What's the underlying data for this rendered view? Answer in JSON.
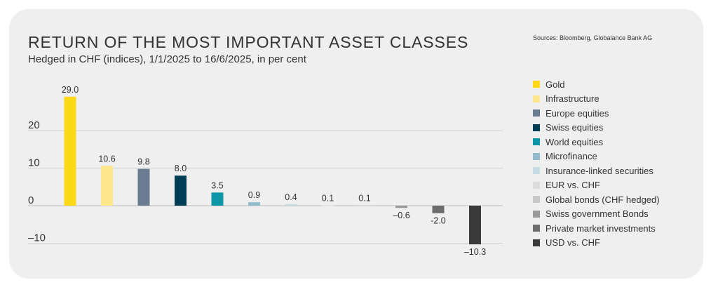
{
  "source": "Sources: Bloomberg, Globalance Bank AG",
  "chart_data": {
    "type": "bar",
    "title": "RETURN OF THE MOST IMPORTANT ASSET CLASSES",
    "subtitle": "Hedged in CHF (indices), 1/1/2025 to 16/6/2025, in per cent",
    "xlabel": "",
    "ylabel": "",
    "ylim": [
      -10.3,
      29.0
    ],
    "yticks": [
      20,
      10,
      0,
      -10
    ],
    "ytick_labels": [
      "20",
      "10",
      "0",
      "–10"
    ],
    "grid": true,
    "legend_position": "right",
    "categories": [
      "Gold",
      "Infrastructure",
      "Europe equities",
      "Swiss equities",
      "World equities",
      "Microfinance",
      "Insurance-linked securities",
      "EUR vs. CHF",
      "Global bonds (CHF hedged)",
      "Swiss government Bonds",
      "Private market investments",
      "USD vs. CHF"
    ],
    "values": [
      29.0,
      10.6,
      9.8,
      8.0,
      3.5,
      0.9,
      0.4,
      0.1,
      0.1,
      -0.6,
      -2.0,
      -10.3
    ],
    "value_labels": [
      "29.0",
      "10.6",
      "9.8",
      "8.0",
      "3.5",
      "0.9",
      "0.4",
      "0.1",
      "0.1",
      "–0.6",
      "-2.0",
      "–10.3"
    ],
    "colors": [
      "#fdd817",
      "#fde68c",
      "#6a7c91",
      "#003e55",
      "#0d97a6",
      "#92bccb",
      "#c4dde5",
      "#dcdcdc",
      "#c8c8c8",
      "#9a9a9a",
      "#6c6c6c",
      "#3a3a3a"
    ]
  }
}
